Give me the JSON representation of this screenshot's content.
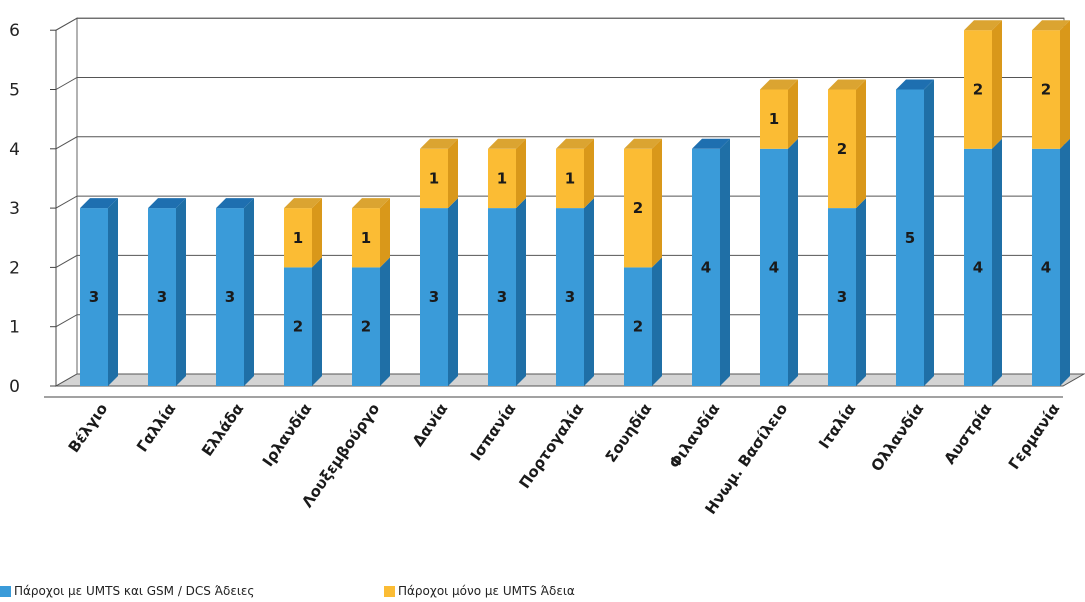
{
  "chart_data": {
    "type": "bar",
    "stacked": true,
    "title": "",
    "xlabel": "",
    "ylabel": "",
    "ylim": [
      0,
      6
    ],
    "yticks": [
      0,
      1,
      2,
      3,
      4,
      5,
      6
    ],
    "grid": true,
    "legend_position": "bottom-left",
    "categories": [
      "Βέλγιο",
      "Γαλλία",
      "Ελλάδα",
      "Ιρλανδία",
      "Λουξεμβούργο",
      "Δανία",
      "Ισπανία",
      "Πορτογαλία",
      "Σουηδία",
      "Φιλανδία",
      "Ηνωμ. Βασίλειο",
      "Ιταλία",
      "Ολλανδία",
      "Αυστρία",
      "Γερμανία"
    ],
    "series": [
      {
        "name": "Πάροχοι με UMTS και GSM / DCS Άδειες",
        "color": "#3a9bd9",
        "values": [
          3,
          3,
          3,
          2,
          2,
          3,
          3,
          3,
          2,
          4,
          4,
          3,
          5,
          4,
          4
        ]
      },
      {
        "name": "Πάροχοι μόνο με UMTS Άδεια",
        "color": "#fbbc34",
        "values": [
          0,
          0,
          0,
          1,
          1,
          1,
          1,
          1,
          2,
          0,
          1,
          2,
          0,
          2,
          2
        ]
      }
    ]
  }
}
